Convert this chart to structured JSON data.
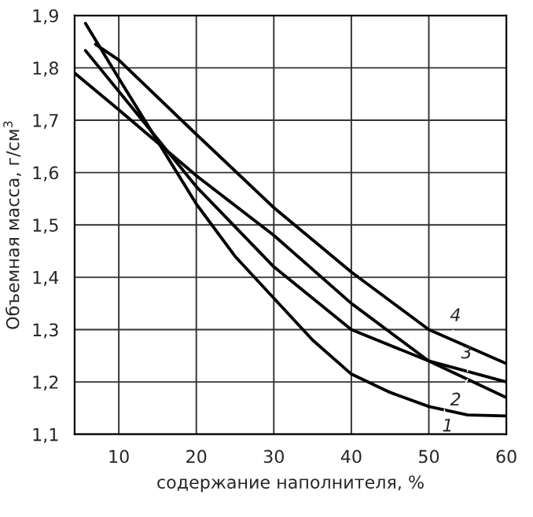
{
  "chart_data": {
    "type": "line",
    "xlabel": "содержание наполнителя, %",
    "ylabel": "Объемная масса, г/см$^{3}$",
    "xlim": [
      4.3,
      60
    ],
    "ylim": [
      1.1,
      1.9
    ],
    "xticks": [
      10,
      20,
      30,
      40,
      50,
      60
    ],
    "yticks": [
      {
        "value": 1.1,
        "label": "1,1"
      },
      {
        "value": 1.2,
        "label": "1,2"
      },
      {
        "value": 1.3,
        "label": "1,3"
      },
      {
        "value": 1.4,
        "label": "1,4"
      },
      {
        "value": 1.5,
        "label": "1,5"
      },
      {
        "value": 1.6,
        "label": "1,6"
      },
      {
        "value": 1.7,
        "label": "1,7"
      },
      {
        "value": 1.8,
        "label": "1,8"
      },
      {
        "value": 1.9,
        "label": "1,9"
      }
    ],
    "grid": true,
    "legend": false,
    "marker": "none",
    "line_style": "solid",
    "series": [
      {
        "color": "#000000",
        "x": [
          5.7,
          10,
          15,
          20,
          25,
          30,
          35,
          40,
          45,
          50,
          55,
          60
        ],
        "values": [
          1.885,
          1.78,
          1.66,
          1.54,
          1.44,
          1.36,
          1.28,
          1.215,
          1.18,
          1.153,
          1.137,
          1.135
        ]
      },
      {
        "color": "#000000",
        "x": [
          4.3,
          10,
          20,
          30,
          40,
          50,
          60
        ],
        "values": [
          1.79,
          1.72,
          1.594,
          1.48,
          1.35,
          1.24,
          1.17
        ]
      },
      {
        "color": "#000000",
        "x": [
          5.7,
          10,
          20,
          30,
          40,
          50,
          60
        ],
        "values": [
          1.833,
          1.755,
          1.573,
          1.42,
          1.3,
          1.24,
          1.2
        ]
      },
      {
        "color": "#000000",
        "x": [
          7,
          10,
          20,
          30,
          40,
          50,
          60
        ],
        "values": [
          1.845,
          1.815,
          1.673,
          1.533,
          1.41,
          1.3,
          1.235
        ]
      }
    ],
    "annotations": [
      {
        "text": "1",
        "x": 52,
        "y": 1.147
      },
      {
        "text": "2",
        "x": 55,
        "y": 1.205
      },
      {
        "text": "3",
        "x": 55,
        "y": 1.22
      },
      {
        "text": "4",
        "x": 53,
        "y": 1.287
      }
    ]
  }
}
